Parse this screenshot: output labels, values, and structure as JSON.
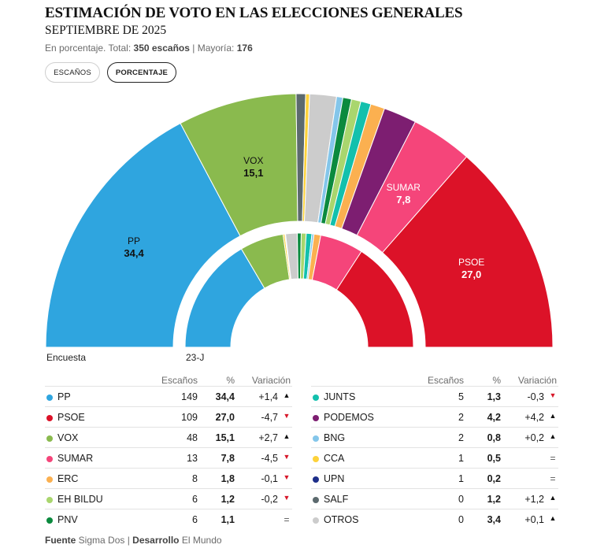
{
  "header": {
    "title": "ESTIMACIÓN DE VOTO EN LAS ELECCIONES GENERALES",
    "subtitle": "SEPTIEMBRE DE 2025",
    "note_prefix": "En porcentaje. Total: ",
    "note_total": "350 escaños",
    "note_mid": " | Mayoría: ",
    "note_majority": "176"
  },
  "toggles": {
    "seats": "ESCAÑOS",
    "percent": "PORCENTAJE"
  },
  "colors": {
    "PP": "#2fa5df",
    "PSOE": "#dc1228",
    "VOX": "#8aba4e",
    "SUMAR": "#f5457a",
    "ERC": "#fbb050",
    "EH BILDU": "#a9d66e",
    "PNV": "#0b8a3e",
    "JUNTS": "#13c0ad",
    "PODEMOS": "#7d1e71",
    "BNG": "#84c6ea",
    "CCA": "#fdd23a",
    "UPN": "#1e2f8a",
    "SALF": "#5c6a6e",
    "OTROS": "#cccccc"
  },
  "chart_data": {
    "type": "pie",
    "subtype": "parliament-hemicycle",
    "outer_series": {
      "name": "Encuesta",
      "order": [
        "PP",
        "VOX",
        "SALF",
        "CCA",
        "OTROS",
        "BNG",
        "PNV",
        "EH BILDU",
        "JUNTS",
        "ERC",
        "PODEMOS",
        "SUMAR",
        "PSOE"
      ],
      "values": [
        34.4,
        15.1,
        1.2,
        0.5,
        3.4,
        0.8,
        1.1,
        1.2,
        1.3,
        1.8,
        4.2,
        7.8,
        27.0
      ]
    },
    "inner_series": {
      "name": "23-J",
      "order": [
        "PP",
        "VOX",
        "CCA",
        "UPN",
        "OTROS",
        "PNV",
        "EH BILDU",
        "JUNTS",
        "BNG",
        "ERC",
        "SUMAR",
        "PSOE"
      ],
      "values": [
        33.1,
        12.4,
        0.5,
        0.2,
        3.3,
        1.1,
        1.4,
        1.6,
        0.6,
        1.9,
        12.3,
        31.7
      ]
    },
    "labels": [
      {
        "party": "PP",
        "text": "PP",
        "value": "34,4"
      },
      {
        "party": "VOX",
        "text": "VOX",
        "value": "15,1"
      },
      {
        "party": "SUMAR",
        "text": "SUMAR",
        "value": "7,8"
      },
      {
        "party": "PSOE",
        "text": "PSOE",
        "value": "27,0"
      }
    ],
    "legend": {
      "outer": "Encuesta",
      "inner": "23-J"
    }
  },
  "table": {
    "headers": {
      "seats": "Escaños",
      "pct": "%",
      "var": "Variación"
    },
    "left": [
      {
        "party": "PP",
        "seats": "149",
        "pct": "34,4",
        "var": "+1,4",
        "dir": "up"
      },
      {
        "party": "PSOE",
        "seats": "109",
        "pct": "27,0",
        "var": "-4,7",
        "dir": "down"
      },
      {
        "party": "VOX",
        "seats": "48",
        "pct": "15,1",
        "var": "+2,7",
        "dir": "up"
      },
      {
        "party": "SUMAR",
        "seats": "13",
        "pct": "7,8",
        "var": "-4,5",
        "dir": "down"
      },
      {
        "party": "ERC",
        "seats": "8",
        "pct": "1,8",
        "var": "-0,1",
        "dir": "down"
      },
      {
        "party": "EH BILDU",
        "seats": "6",
        "pct": "1,2",
        "var": "-0,2",
        "dir": "down"
      },
      {
        "party": "PNV",
        "seats": "6",
        "pct": "1,1",
        "var": "",
        "dir": "eq"
      }
    ],
    "right": [
      {
        "party": "JUNTS",
        "seats": "5",
        "pct": "1,3",
        "var": "-0,3",
        "dir": "down"
      },
      {
        "party": "PODEMOS",
        "seats": "2",
        "pct": "4,2",
        "var": "+4,2",
        "dir": "up"
      },
      {
        "party": "BNG",
        "seats": "2",
        "pct": "0,8",
        "var": "+0,2",
        "dir": "up"
      },
      {
        "party": "CCA",
        "seats": "1",
        "pct": "0,5",
        "var": "",
        "dir": "eq"
      },
      {
        "party": "UPN",
        "seats": "1",
        "pct": "0,2",
        "var": "",
        "dir": "eq"
      },
      {
        "party": "SALF",
        "seats": "0",
        "pct": "1,2",
        "var": "+1,2",
        "dir": "up"
      },
      {
        "party": "OTROS",
        "seats": "0",
        "pct": "3,4",
        "var": "+0,1",
        "dir": "up"
      }
    ]
  },
  "footer": {
    "source_label": "Fuente",
    "source": " Sigma Dos | ",
    "dev_label": "Desarrollo",
    "dev": " El Mundo"
  }
}
